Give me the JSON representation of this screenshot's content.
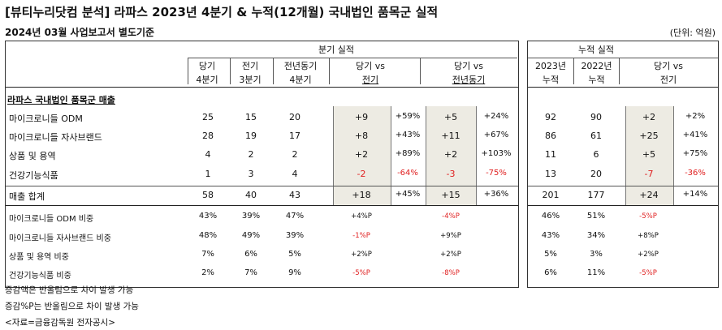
{
  "title": "[뷰티누리닷컴 분석] 라파스 2023년 4분기 & 누적(12개월) 국내법인 품목군 실적",
  "subtitle": "2024년 03월 사업보고서 별도기준",
  "unit": "(단위: 억원)",
  "left": {
    "group_header": "분기 실적",
    "cols": [
      {
        "l1": "당기",
        "l2": "4분기"
      },
      {
        "l1": "전기",
        "l2": "3분기"
      },
      {
        "l1": "전년동기",
        "l2": "4분기"
      },
      {
        "l1": "당기 vs",
        "l2": "전기"
      },
      {
        "l1": "당기 vs",
        "l2": "전년동기"
      }
    ]
  },
  "right": {
    "group_header": "누적 실적",
    "cols": [
      {
        "l1": "2023년",
        "l2": "누적"
      },
      {
        "l1": "2022년",
        "l2": "누적"
      },
      {
        "l1": "당기 vs",
        "l2": "전기"
      }
    ]
  },
  "section_label": "라파스 국내법인 품목군 매출",
  "rows": [
    {
      "label": "마이크로니들 ODM",
      "q": [
        "25",
        "15",
        "20"
      ],
      "d1": "+9",
      "p1": "+59%",
      "d2": "+5",
      "p2": "+24%",
      "c": [
        "92",
        "90"
      ],
      "d3": "+2",
      "p3": "+2%"
    },
    {
      "label": "마이크로니들 자사브랜드",
      "q": [
        "28",
        "19",
        "17"
      ],
      "d1": "+8",
      "p1": "+43%",
      "d2": "+11",
      "p2": "+67%",
      "c": [
        "86",
        "61"
      ],
      "d3": "+25",
      "p3": "+41%"
    },
    {
      "label": "상품 및 용역",
      "q": [
        "4",
        "2",
        "2"
      ],
      "d1": "+2",
      "p1": "+89%",
      "d2": "+2",
      "p2": "+103%",
      "c": [
        "11",
        "6"
      ],
      "d3": "+5",
      "p3": "+75%"
    },
    {
      "label": "건강기능식품",
      "q": [
        "1",
        "3",
        "4"
      ],
      "d1": "-2",
      "p1": "-64%",
      "d2": "-3",
      "p2": "-75%",
      "c": [
        "13",
        "20"
      ],
      "d3": "-7",
      "p3": "-36%"
    }
  ],
  "total": {
    "label": "매출 합계",
    "q": [
      "58",
      "40",
      "43"
    ],
    "d1": "+18",
    "p1": "+45%",
    "d2": "+15",
    "p2": "+36%",
    "c": [
      "201",
      "177"
    ],
    "d3": "+24",
    "p3": "+14%"
  },
  "ratios": [
    {
      "label": "마이크로니들 ODM 비중",
      "q": [
        "43%",
        "39%",
        "47%"
      ],
      "r1": "+4%P",
      "r2": "-4%P",
      "c": [
        "46%",
        "51%"
      ],
      "r3": "-5%P"
    },
    {
      "label": "마이크로니들 자사브랜드 비중",
      "q": [
        "48%",
        "49%",
        "39%"
      ],
      "r1": "-1%P",
      "r2": "+9%P",
      "c": [
        "43%",
        "34%"
      ],
      "r3": "+8%P"
    },
    {
      "label": "상품 및 용역 비중",
      "q": [
        "7%",
        "6%",
        "5%"
      ],
      "r1": "+2%P",
      "r2": "+2%P",
      "c": [
        "5%",
        "3%"
      ],
      "r3": "+2%P"
    },
    {
      "label": "건강기능식품 비중",
      "q": [
        "2%",
        "7%",
        "9%"
      ],
      "r1": "-5%P",
      "r2": "-8%P",
      "c": [
        "6%",
        "11%"
      ],
      "r3": "-5%P"
    }
  ],
  "notes": [
    "증감액은 반올림으로 차이 발생 가능",
    "증감%P는 반올림으로 차이 발생 가능",
    "<자료=금융감독원 전자공시>"
  ],
  "colors": {
    "negative": "#e02020",
    "shade": "#edebe3"
  }
}
